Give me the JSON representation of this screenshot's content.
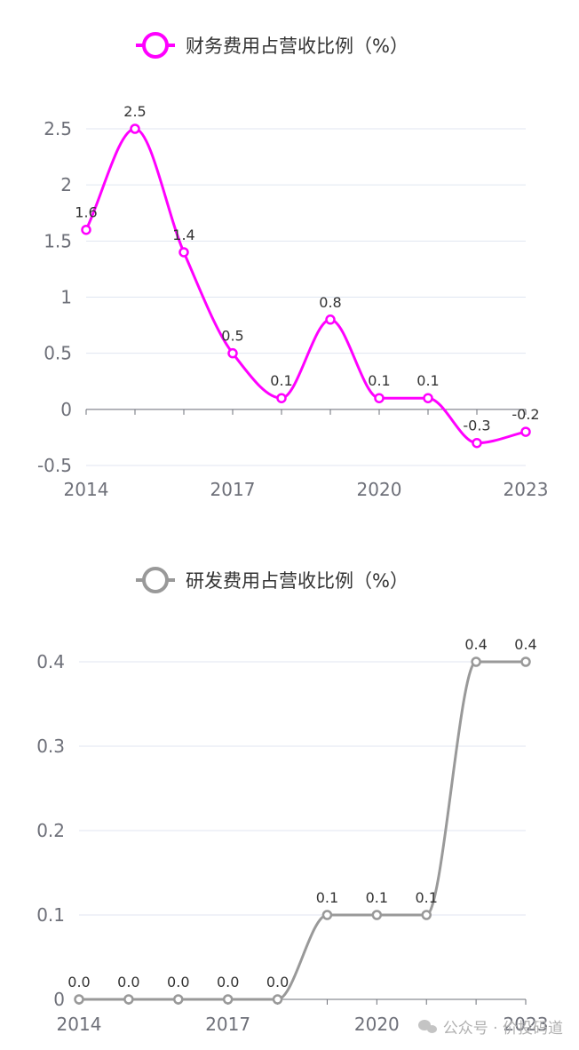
{
  "chart_data": [
    {
      "type": "line",
      "smooth": true,
      "legend": "财务费用占营收比例（%）",
      "legend_position": "top-center",
      "color": "#ff00ff",
      "x": [
        2014,
        2015,
        2016,
        2017,
        2018,
        2019,
        2020,
        2021,
        2022,
        2023
      ],
      "x_tick_labels": [
        "2014",
        "2017",
        "2020",
        "2023"
      ],
      "series": [
        {
          "values": [
            1.6,
            2.5,
            1.4,
            0.5,
            0.1,
            0.8,
            0.1,
            0.1,
            -0.3,
            -0.2
          ],
          "labels": [
            "1.6",
            "2.5",
            "1.4",
            "0.5",
            "0.1",
            "0.8",
            "0.1",
            "0.1",
            "-0.3",
            "-0.2"
          ]
        }
      ],
      "ylim": [
        -0.5,
        2.5
      ],
      "y_ticks": [
        -0.5,
        0,
        0.5,
        1,
        1.5,
        2,
        2.5
      ],
      "y_tick_labels": [
        "-0.5",
        "0",
        "0.5",
        "1",
        "1.5",
        "2",
        "2.5"
      ],
      "grid": true
    },
    {
      "type": "line",
      "smooth": true,
      "legend": "研发费用占营收比例（%）",
      "legend_position": "top-center",
      "color": "#999999",
      "x": [
        2014,
        2015,
        2016,
        2017,
        2018,
        2019,
        2020,
        2021,
        2022,
        2023
      ],
      "x_tick_labels": [
        "2014",
        "2017",
        "2020",
        "2023"
      ],
      "series": [
        {
          "values": [
            0.0,
            0.0,
            0.0,
            0.0,
            0.0,
            0.1,
            0.1,
            0.1,
            0.4,
            0.4
          ],
          "labels": [
            "0.0",
            "0.0",
            "0.0",
            "0.0",
            "0.0",
            "0.1",
            "0.1",
            "0.1",
            "0.4",
            "0.4"
          ]
        }
      ],
      "ylim": [
        0,
        0.4
      ],
      "y_ticks": [
        0,
        0.1,
        0.2,
        0.3,
        0.4
      ],
      "y_tick_labels": [
        "0",
        "0.1",
        "0.2",
        "0.3",
        "0.4"
      ],
      "grid": true
    }
  ],
  "watermark": {
    "text": "公众号 · 价投码道"
  }
}
